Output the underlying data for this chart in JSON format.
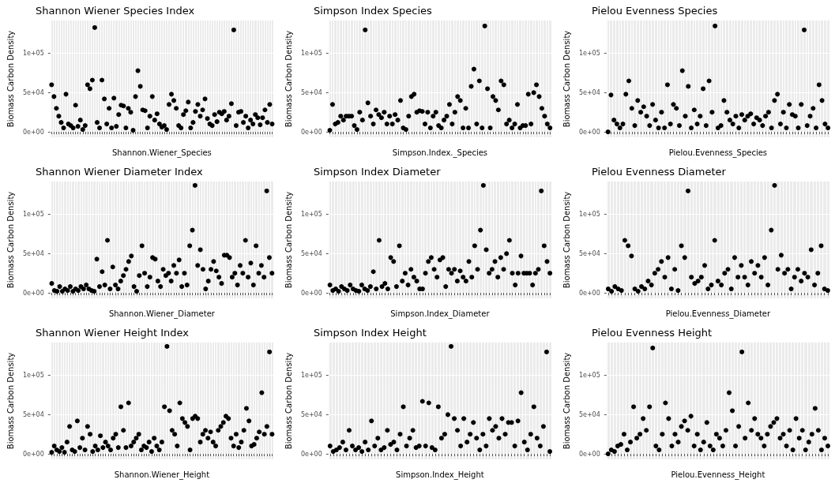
{
  "chart_data": [
    {
      "type": "scatter",
      "title": "Shannon Wiener Species Index",
      "xlabel": "Shannon.Wiener_Species",
      "ylabel": "Biomass Carbon Density",
      "marker": "circle",
      "grid": true,
      "ylim": [
        -7000,
        142000
      ],
      "yticks": [
        {
          "value": 0,
          "label": "0e+00"
        },
        {
          "value": 50000,
          "label": "5e+04"
        },
        {
          "value": 100000,
          "label": "1e+05"
        }
      ],
      "color": "#000000",
      "values": [
        60000,
        45000,
        30000,
        20000,
        12000,
        5000,
        48000,
        10000,
        8000,
        5000,
        34000,
        7000,
        15000,
        3000,
        8000,
        60000,
        55000,
        66000,
        133000,
        12000,
        5000,
        66000,
        42000,
        10000,
        30000,
        5000,
        43000,
        7000,
        22000,
        34000,
        33000,
        5000,
        30000,
        25000,
        2000,
        45000,
        78000,
        58000,
        28000,
        27000,
        5000,
        20000,
        45000,
        15000,
        23000,
        10000,
        6000,
        8000,
        3000,
        35000,
        48000,
        40000,
        30000,
        8000,
        5000,
        22000,
        27000,
        38000,
        5000,
        12000,
        26000,
        35000,
        20000,
        28000,
        42000,
        17000,
        10000,
        8000,
        22000,
        13000,
        25000,
        23000,
        26000,
        15000,
        20000,
        36000,
        130000,
        8000,
        25000,
        26000,
        12000,
        20000,
        5000,
        15000,
        10000,
        22000,
        18000,
        9000,
        18000,
        28000,
        12000,
        35000,
        10000
      ]
    },
    {
      "type": "scatter",
      "title": "Simpson Index Species",
      "xlabel": "Simpson.Index._Species",
      "ylabel": "Biomass Carbon Density",
      "marker": "circle",
      "grid": true,
      "ylim": [
        -7000,
        142000
      ],
      "yticks": [
        {
          "value": 0,
          "label": "0e+00"
        },
        {
          "value": 50000,
          "label": "5e+04"
        },
        {
          "value": 100000,
          "label": "1e+05"
        }
      ],
      "color": "#000000",
      "values": [
        2000,
        35000,
        10000,
        12000,
        20000,
        15000,
        20000,
        20000,
        20000,
        8000,
        3000,
        25000,
        15000,
        130000,
        37000,
        20000,
        10000,
        28000,
        22000,
        18000,
        25000,
        10000,
        20000,
        10000,
        22000,
        15000,
        40000,
        5000,
        3000,
        20000,
        45000,
        48000,
        25000,
        27000,
        26000,
        10000,
        25000,
        5000,
        20000,
        25000,
        8000,
        5000,
        15000,
        20000,
        35000,
        10000,
        25000,
        45000,
        40000,
        5000,
        30000,
        5000,
        58000,
        80000,
        10000,
        65000,
        5000,
        135000,
        55000,
        5000,
        45000,
        40000,
        28000,
        65000,
        60000,
        10000,
        15000,
        5000,
        10000,
        35000,
        5000,
        8000,
        8000,
        48000,
        10000,
        50000,
        60000,
        45000,
        30000,
        20000,
        10000,
        5000
      ]
    },
    {
      "type": "scatter",
      "title": "Pielou Evenness Species",
      "xlabel": "Pielou.Evenness_Species",
      "ylabel": "Biomass Carbon Density",
      "marker": "circle",
      "grid": true,
      "ylim": [
        -7000,
        142000
      ],
      "yticks": [
        {
          "value": 0,
          "label": "0e+00"
        },
        {
          "value": 50000,
          "label": "5e+04"
        },
        {
          "value": 100000,
          "label": "1e+05"
        }
      ],
      "color": "#000000",
      "values": [
        0,
        47000,
        15000,
        10000,
        5000,
        10000,
        48000,
        65000,
        30000,
        8000,
        40000,
        25000,
        32000,
        20000,
        8000,
        35000,
        15000,
        5000,
        25000,
        5000,
        60000,
        10000,
        35000,
        30000,
        8000,
        78000,
        20000,
        58000,
        5000,
        28000,
        10000,
        20000,
        55000,
        8000,
        65000,
        25000,
        135000,
        5000,
        8000,
        40000,
        25000,
        15000,
        10000,
        20000,
        5000,
        22000,
        15000,
        20000,
        23000,
        10000,
        18000,
        15000,
        8000,
        20000,
        25000,
        5000,
        40000,
        48000,
        10000,
        25000,
        5000,
        35000,
        22000,
        20000,
        5000,
        35000,
        130000,
        8000,
        20000,
        30000,
        5000,
        60000,
        40000,
        10000,
        5000
      ]
    },
    {
      "type": "scatter",
      "title": "Shannon Wiener Diameter Index",
      "xlabel": "Shannon.Wiener_Diameter",
      "ylabel": "Biomass Carbon Density",
      "marker": "circle",
      "grid": true,
      "ylim": [
        -7000,
        142000
      ],
      "yticks": [
        {
          "value": 0,
          "label": "0e+00"
        },
        {
          "value": 50000,
          "label": "5e+04"
        },
        {
          "value": 100000,
          "label": "1e+05"
        }
      ],
      "color": "#000000",
      "values": [
        12000,
        3000,
        2000,
        8000,
        2000,
        5000,
        3000,
        8000,
        2000,
        5000,
        3000,
        8000,
        5000,
        10000,
        5000,
        3000,
        2000,
        43000,
        8000,
        27000,
        10000,
        67000,
        5000,
        33000,
        10000,
        5000,
        15000,
        22000,
        30000,
        40000,
        47000,
        8000,
        2000,
        22000,
        60000,
        25000,
        8000,
        20000,
        45000,
        43000,
        15000,
        8000,
        30000,
        22000,
        25000,
        15000,
        35000,
        25000,
        42000,
        8000,
        25000,
        10000,
        60000,
        80000,
        137000,
        35000,
        55000,
        30000,
        5000,
        15000,
        30000,
        40000,
        28000,
        20000,
        12000,
        48000,
        48000,
        45000,
        20000,
        25000,
        10000,
        35000,
        25000,
        67000,
        20000,
        38000,
        10000,
        60000,
        25000,
        35000,
        20000,
        130000,
        45000,
        25000
      ]
    },
    {
      "type": "scatter",
      "title": "Simpson Index Diameter",
      "xlabel": "Simpson.Index_Diameter",
      "ylabel": "Biomass Carbon Density",
      "marker": "circle",
      "grid": true,
      "ylim": [
        -7000,
        142000
      ],
      "yticks": [
        {
          "value": 0,
          "label": "0e+00"
        },
        {
          "value": 50000,
          "label": "5e+04"
        },
        {
          "value": 100000,
          "label": "1e+05"
        }
      ],
      "color": "#000000",
      "values": [
        10000,
        3000,
        5000,
        2000,
        8000,
        5000,
        3000,
        10000,
        5000,
        3000,
        2000,
        10000,
        5000,
        3000,
        8000,
        27000,
        5000,
        67000,
        8000,
        12000,
        5000,
        45000,
        40000,
        8000,
        60000,
        15000,
        25000,
        10000,
        30000,
        20000,
        15000,
        5000,
        5000,
        25000,
        40000,
        45000,
        30000,
        20000,
        42000,
        45000,
        8000,
        30000,
        25000,
        30000,
        15000,
        28000,
        20000,
        15000,
        40000,
        20000,
        60000,
        30000,
        80000,
        137000,
        55000,
        25000,
        30000,
        40000,
        20000,
        45000,
        30000,
        50000,
        67000,
        25000,
        10000,
        25000,
        47000,
        25000,
        25000,
        25000,
        10000,
        25000,
        30000,
        130000,
        60000,
        40000,
        25000
      ]
    },
    {
      "type": "scatter",
      "title": "Pielou Evenness Diameter",
      "xlabel": "Pielou.Evenness_Diameter",
      "ylabel": "Biomass Carbon Density",
      "marker": "circle",
      "grid": true,
      "ylim": [
        -7000,
        142000
      ],
      "yticks": [
        {
          "value": 0,
          "label": "0e+00"
        },
        {
          "value": 50000,
          "label": "5e+04"
        },
        {
          "value": 100000,
          "label": "1e+05"
        }
      ],
      "color": "#000000",
      "values": [
        5000,
        2000,
        8000,
        5000,
        3000,
        67000,
        60000,
        47000,
        5000,
        2000,
        8000,
        5000,
        15000,
        10000,
        25000,
        30000,
        40000,
        20000,
        45000,
        5000,
        30000,
        3000,
        60000,
        45000,
        130000,
        20000,
        12000,
        15000,
        20000,
        35000,
        5000,
        10000,
        67000,
        15000,
        10000,
        25000,
        30000,
        5000,
        45000,
        20000,
        35000,
        20000,
        10000,
        40000,
        25000,
        35000,
        20000,
        45000,
        10000,
        80000,
        137000,
        30000,
        48000,
        25000,
        30000,
        5000,
        20000,
        30000,
        15000,
        25000,
        20000,
        55000,
        10000,
        25000,
        60000,
        5000,
        3000
      ]
    },
    {
      "type": "scatter",
      "title": "Shannon Wiener Height Index",
      "xlabel": "Shannon.Wiener_Height",
      "ylabel": "Biomass Carbon Density",
      "marker": "circle",
      "grid": true,
      "ylim": [
        -7000,
        142000
      ],
      "yticks": [
        {
          "value": 0,
          "label": "0e+00"
        },
        {
          "value": 50000,
          "label": "5e+04"
        },
        {
          "value": 100000,
          "label": "1e+05"
        }
      ],
      "color": "#000000",
      "values": [
        2000,
        10000,
        5000,
        3000,
        8000,
        2000,
        15000,
        35000,
        5000,
        3000,
        42000,
        8000,
        20000,
        5000,
        35000,
        25000,
        3000,
        10000,
        5000,
        23000,
        8000,
        15000,
        10000,
        5000,
        20000,
        25000,
        8000,
        60000,
        30000,
        8000,
        65000,
        10000,
        15000,
        20000,
        25000,
        5000,
        10000,
        8000,
        15000,
        3000,
        20000,
        10000,
        5000,
        15000,
        60000,
        137000,
        55000,
        30000,
        25000,
        10000,
        65000,
        45000,
        40000,
        35000,
        5000,
        45000,
        48000,
        45000,
        15000,
        25000,
        30000,
        20000,
        28000,
        15000,
        10000,
        30000,
        35000,
        40000,
        48000,
        45000,
        20000,
        10000,
        25000,
        8000,
        15000,
        30000,
        58000,
        42000,
        10000,
        12000,
        20000,
        28000,
        78000,
        25000,
        35000,
        130000,
        25000
      ]
    },
    {
      "type": "scatter",
      "title": "Simpson Index Height",
      "xlabel": "Simpson.Index_Height",
      "ylabel": "Biomass Carbon Density",
      "marker": "circle",
      "grid": true,
      "ylim": [
        -7000,
        142000
      ],
      "yticks": [
        {
          "value": 0,
          "label": "0e+00"
        },
        {
          "value": 50000,
          "label": "5e+04"
        },
        {
          "value": 100000,
          "label": "1e+05"
        }
      ],
      "color": "#000000",
      "values": [
        10000,
        3000,
        5000,
        8000,
        15000,
        5000,
        30000,
        10000,
        5000,
        8000,
        3000,
        15000,
        5000,
        42000,
        10000,
        20000,
        5000,
        8000,
        30000,
        12000,
        15000,
        5000,
        25000,
        60000,
        10000,
        20000,
        30000,
        8000,
        10000,
        67000,
        10000,
        65000,
        8000,
        5000,
        60000,
        20000,
        25000,
        50000,
        137000,
        45000,
        30000,
        10000,
        45000,
        15000,
        25000,
        40000,
        20000,
        5000,
        25000,
        10000,
        45000,
        30000,
        35000,
        20000,
        45000,
        25000,
        40000,
        40000,
        10000,
        42000,
        78000,
        15000,
        5000,
        25000,
        60000,
        20000,
        10000,
        35000,
        130000,
        3000
      ]
    },
    {
      "type": "scatter",
      "title": "Pielou Evenness Height",
      "xlabel": "Pielou.Evenness_Height",
      "ylabel": "Biomass Carbon Density",
      "marker": "circle",
      "grid": true,
      "ylim": [
        -7000,
        142000
      ],
      "yticks": [
        {
          "value": 0,
          "label": "0e+00"
        },
        {
          "value": 50000,
          "label": "5e+04"
        },
        {
          "value": 100000,
          "label": "1e+05"
        }
      ],
      "color": "#000000",
      "values": [
        0,
        5000,
        3000,
        10000,
        12000,
        25000,
        5000,
        15000,
        60000,
        20000,
        25000,
        45000,
        30000,
        60000,
        135000,
        10000,
        5000,
        25000,
        65000,
        45000,
        10000,
        25000,
        15000,
        35000,
        42000,
        30000,
        48000,
        10000,
        25000,
        5000,
        15000,
        40000,
        10000,
        5000,
        25000,
        20000,
        10000,
        30000,
        78000,
        55000,
        10000,
        35000,
        130000,
        20000,
        65000,
        30000,
        45000,
        25000,
        20000,
        10000,
        25000,
        35000,
        40000,
        45000,
        20000,
        25000,
        10000,
        30000,
        5000,
        45000,
        20000,
        30000,
        5000,
        15000,
        25000,
        58000,
        30000,
        5000,
        20000,
        10000
      ]
    }
  ]
}
